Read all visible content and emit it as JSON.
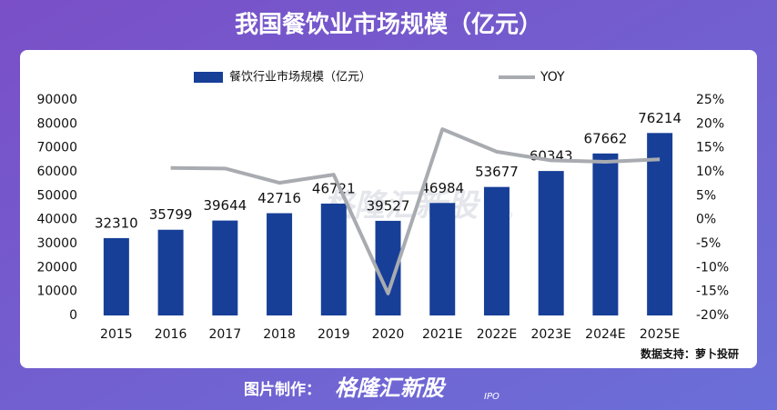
{
  "chart_data": {
    "type": "bar",
    "title": "我国餐饮业市场规模（亿元）",
    "categories": [
      "2015",
      "2016",
      "2017",
      "2018",
      "2019",
      "2020",
      "2021E",
      "2022E",
      "2023E",
      "2024E",
      "2025E"
    ],
    "series": [
      {
        "name": "餐饮行业市场规模（亿元）",
        "color": "#173f98",
        "values": [
          32310,
          35799,
          39644,
          42716,
          46721,
          39527,
          46984,
          53677,
          60343,
          67662,
          76214
        ]
      },
      {
        "name": "YOY",
        "type": "line",
        "axis": "y2",
        "color": "#a8abb0",
        "values": [
          null,
          10.8,
          10.7,
          7.7,
          9.4,
          -15.4,
          18.9,
          14.2,
          12.4,
          12.1,
          12.6
        ]
      }
    ],
    "data_labels": true,
    "ylim": [
      0,
      90000
    ],
    "yticks": [
      0,
      10000,
      20000,
      30000,
      40000,
      50000,
      60000,
      70000,
      80000,
      90000
    ],
    "y2lim": [
      -20,
      25
    ],
    "y2ticks": [
      {
        "value": -20,
        "label": "-20%"
      },
      {
        "value": -15,
        "label": "-15%"
      },
      {
        "value": -10,
        "label": "-10%"
      },
      {
        "value": -5,
        "label": "-5%"
      },
      {
        "value": 0,
        "label": "0%"
      },
      {
        "value": 5,
        "label": "5%"
      },
      {
        "value": 10,
        "label": "10%"
      },
      {
        "value": 15,
        "label": "15%"
      },
      {
        "value": 20,
        "label": "20%"
      },
      {
        "value": 25,
        "label": "25%"
      }
    ],
    "legend": "top",
    "watermark": "格隆汇新股",
    "watermark_sub": "IPO",
    "source": "数据支持：萝卜投研"
  },
  "footer": {
    "label": "图片制作：",
    "brand": "格隆汇新股",
    "brand_sub": "IPO"
  }
}
